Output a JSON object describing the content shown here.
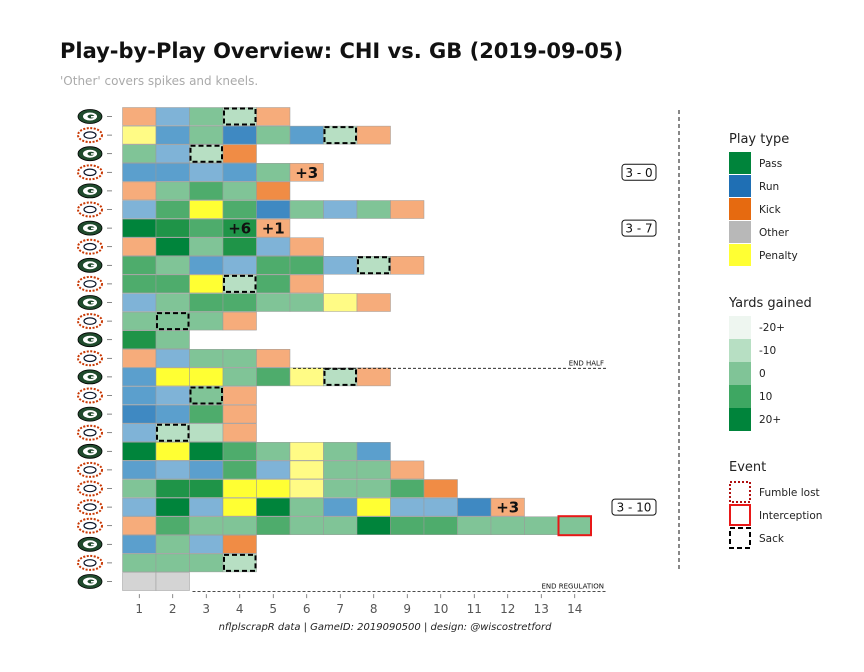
{
  "chart_data": {
    "type": "heatmap",
    "title": "Play-by-Play Overview: CHI vs. GB (2019-09-05)",
    "subtitle": "'Other' covers spikes and kneels.",
    "caption": "nflplscrapR data | GameID: 2019090500 | design: @wiscostretford",
    "x_ticks": [
      "1",
      "2",
      "3",
      "4",
      "5",
      "6",
      "7",
      "8",
      "9",
      "10",
      "11",
      "12",
      "13",
      "14"
    ],
    "colors": {
      "kick": [
        "#f6ac7b",
        "#f08c45"
      ],
      "run": [
        "#7fb3d7",
        "#5b9fcd",
        "#3f89c2"
      ],
      "pass": [
        "#b7dfc3",
        "#80c497",
        "#4eac6c",
        "#1f9448",
        "#00843b"
      ],
      "penalty": [
        "#fffb85",
        "#ffff33"
      ],
      "other": "#d4d4d4",
      "grid_stroke": "#999999",
      "interception": "#e81818"
    },
    "drives": [
      {
        "team": "GB",
        "plays": [
          {
            "t": "kick",
            "s": 0
          },
          {
            "t": "run",
            "s": 0
          },
          {
            "t": "pass",
            "s": 1
          },
          {
            "t": "pass",
            "s": 0,
            "e": "sack"
          },
          {
            "t": "kick",
            "s": 0
          }
        ]
      },
      {
        "team": "CHI",
        "plays": [
          {
            "t": "penalty",
            "s": 0
          },
          {
            "t": "run",
            "s": 1
          },
          {
            "t": "pass",
            "s": 1
          },
          {
            "t": "run",
            "s": 2
          },
          {
            "t": "pass",
            "s": 1
          },
          {
            "t": "run",
            "s": 1
          },
          {
            "t": "pass",
            "s": 0,
            "e": "sack"
          },
          {
            "t": "kick",
            "s": 0
          }
        ]
      },
      {
        "team": "GB",
        "plays": [
          {
            "t": "pass",
            "s": 1
          },
          {
            "t": "run",
            "s": 0
          },
          {
            "t": "pass",
            "s": 0,
            "e": "sack"
          },
          {
            "t": "kick",
            "s": 1
          }
        ]
      },
      {
        "team": "CHI",
        "plays": [
          {
            "t": "run",
            "s": 1
          },
          {
            "t": "run",
            "s": 1
          },
          {
            "t": "run",
            "s": 0
          },
          {
            "t": "run",
            "s": 1
          },
          {
            "t": "pass",
            "s": 1
          },
          {
            "t": "kick",
            "s": 0,
            "pts": "+3"
          }
        ],
        "score": "3 - 0"
      },
      {
        "team": "GB",
        "plays": [
          {
            "t": "kick",
            "s": 0
          },
          {
            "t": "pass",
            "s": 1
          },
          {
            "t": "pass",
            "s": 2
          },
          {
            "t": "pass",
            "s": 1
          },
          {
            "t": "kick",
            "s": 1
          }
        ]
      },
      {
        "team": "CHI",
        "plays": [
          {
            "t": "run",
            "s": 0
          },
          {
            "t": "pass",
            "s": 2
          },
          {
            "t": "penalty",
            "s": 1
          },
          {
            "t": "pass",
            "s": 2
          },
          {
            "t": "run",
            "s": 2
          },
          {
            "t": "pass",
            "s": 1
          },
          {
            "t": "run",
            "s": 0
          },
          {
            "t": "pass",
            "s": 1
          },
          {
            "t": "kick",
            "s": 0
          }
        ]
      },
      {
        "team": "GB",
        "plays": [
          {
            "t": "pass",
            "s": 4
          },
          {
            "t": "pass",
            "s": 3
          },
          {
            "t": "pass",
            "s": 2
          },
          {
            "t": "pass",
            "s": 3,
            "pts": "+6"
          },
          {
            "t": "kick",
            "s": 0,
            "pts": "+1"
          }
        ],
        "score": "3 - 7"
      },
      {
        "team": "CHI",
        "plays": [
          {
            "t": "kick",
            "s": 0
          },
          {
            "t": "pass",
            "s": 4
          },
          {
            "t": "pass",
            "s": 1
          },
          {
            "t": "pass",
            "s": 3
          },
          {
            "t": "run",
            "s": 0
          },
          {
            "t": "kick",
            "s": 0
          }
        ]
      },
      {
        "team": "GB",
        "plays": [
          {
            "t": "pass",
            "s": 2
          },
          {
            "t": "pass",
            "s": 1
          },
          {
            "t": "run",
            "s": 1
          },
          {
            "t": "run",
            "s": 0
          },
          {
            "t": "pass",
            "s": 2
          },
          {
            "t": "pass",
            "s": 2
          },
          {
            "t": "run",
            "s": 0
          },
          {
            "t": "pass",
            "s": 0,
            "e": "sack"
          },
          {
            "t": "kick",
            "s": 0
          }
        ]
      },
      {
        "team": "CHI",
        "plays": [
          {
            "t": "pass",
            "s": 2
          },
          {
            "t": "pass",
            "s": 2
          },
          {
            "t": "penalty",
            "s": 1
          },
          {
            "t": "pass",
            "s": 0,
            "e": "sack"
          },
          {
            "t": "pass",
            "s": 2
          },
          {
            "t": "kick",
            "s": 0
          }
        ]
      },
      {
        "team": "GB",
        "plays": [
          {
            "t": "run",
            "s": 0
          },
          {
            "t": "pass",
            "s": 1
          },
          {
            "t": "pass",
            "s": 2
          },
          {
            "t": "pass",
            "s": 2
          },
          {
            "t": "pass",
            "s": 1
          },
          {
            "t": "pass",
            "s": 1
          },
          {
            "t": "penalty",
            "s": 0
          },
          {
            "t": "kick",
            "s": 0
          }
        ]
      },
      {
        "team": "CHI",
        "plays": [
          {
            "t": "pass",
            "s": 1
          },
          {
            "t": "pass",
            "s": 1,
            "e": "sack"
          },
          {
            "t": "pass",
            "s": 1
          },
          {
            "t": "kick",
            "s": 0
          }
        ]
      },
      {
        "team": "GB",
        "plays": [
          {
            "t": "pass",
            "s": 3
          },
          {
            "t": "pass",
            "s": 1
          }
        ]
      },
      {
        "team": "CHI",
        "plays": [
          {
            "t": "kick",
            "s": 0
          },
          {
            "t": "run",
            "s": 0
          },
          {
            "t": "pass",
            "s": 1
          },
          {
            "t": "pass",
            "s": 1
          },
          {
            "t": "kick",
            "s": 0
          }
        ],
        "boundary": "END HALF"
      },
      {
        "team": "GB",
        "plays": [
          {
            "t": "run",
            "s": 1
          },
          {
            "t": "penalty",
            "s": 1
          },
          {
            "t": "penalty",
            "s": 1
          },
          {
            "t": "pass",
            "s": 1
          },
          {
            "t": "pass",
            "s": 2
          },
          {
            "t": "penalty",
            "s": 0
          },
          {
            "t": "pass",
            "s": 0,
            "e": "sack"
          },
          {
            "t": "kick",
            "s": 0
          }
        ]
      },
      {
        "team": "CHI",
        "plays": [
          {
            "t": "run",
            "s": 1
          },
          {
            "t": "run",
            "s": 0
          },
          {
            "t": "pass",
            "s": 1,
            "e": "sack"
          },
          {
            "t": "kick",
            "s": 0
          }
        ]
      },
      {
        "team": "GB",
        "plays": [
          {
            "t": "run",
            "s": 2
          },
          {
            "t": "run",
            "s": 1
          },
          {
            "t": "pass",
            "s": 2
          },
          {
            "t": "kick",
            "s": 0
          }
        ]
      },
      {
        "team": "CHI",
        "plays": [
          {
            "t": "run",
            "s": 0
          },
          {
            "t": "pass",
            "s": 0,
            "e": "sack"
          },
          {
            "t": "pass",
            "s": 0
          },
          {
            "t": "kick",
            "s": 0
          }
        ]
      },
      {
        "team": "GB",
        "plays": [
          {
            "t": "pass",
            "s": 4
          },
          {
            "t": "penalty",
            "s": 1
          },
          {
            "t": "pass",
            "s": 4
          },
          {
            "t": "pass",
            "s": 2
          },
          {
            "t": "pass",
            "s": 1
          },
          {
            "t": "penalty",
            "s": 0
          },
          {
            "t": "pass",
            "s": 1
          },
          {
            "t": "run",
            "s": 1
          }
        ]
      },
      {
        "team": "CHI",
        "plays": [
          {
            "t": "run",
            "s": 1
          },
          {
            "t": "run",
            "s": 0
          },
          {
            "t": "run",
            "s": 1
          },
          {
            "t": "pass",
            "s": 2
          },
          {
            "t": "run",
            "s": 0
          },
          {
            "t": "penalty",
            "s": 0
          },
          {
            "t": "pass",
            "s": 1
          },
          {
            "t": "pass",
            "s": 1
          },
          {
            "t": "kick",
            "s": 0
          }
        ]
      },
      {
        "team": "CHI",
        "plays": [
          {
            "t": "pass",
            "s": 1
          },
          {
            "t": "pass",
            "s": 3
          },
          {
            "t": "pass",
            "s": 3
          },
          {
            "t": "penalty",
            "s": 1
          },
          {
            "t": "penalty",
            "s": 1
          },
          {
            "t": "penalty",
            "s": 0
          },
          {
            "t": "pass",
            "s": 1
          },
          {
            "t": "pass",
            "s": 1
          },
          {
            "t": "pass",
            "s": 2
          },
          {
            "t": "kick",
            "s": 1
          }
        ]
      },
      {
        "team": "CHI",
        "plays": [
          {
            "t": "run",
            "s": 0
          },
          {
            "t": "pass",
            "s": 4
          },
          {
            "t": "run",
            "s": 0
          },
          {
            "t": "penalty",
            "s": 1
          },
          {
            "t": "pass",
            "s": 4
          },
          {
            "t": "pass",
            "s": 1
          },
          {
            "t": "run",
            "s": 1
          },
          {
            "t": "penalty",
            "s": 1
          },
          {
            "t": "run",
            "s": 0
          },
          {
            "t": "run",
            "s": 0
          },
          {
            "t": "run",
            "s": 2
          },
          {
            "t": "kick",
            "s": 0,
            "pts": "+3"
          }
        ],
        "score": "3 - 10"
      },
      {
        "team": "CHI",
        "plays": [
          {
            "t": "kick",
            "s": 0
          },
          {
            "t": "pass",
            "s": 2
          },
          {
            "t": "pass",
            "s": 1
          },
          {
            "t": "pass",
            "s": 1
          },
          {
            "t": "pass",
            "s": 2
          },
          {
            "t": "pass",
            "s": 1
          },
          {
            "t": "pass",
            "s": 1
          },
          {
            "t": "pass",
            "s": 4
          },
          {
            "t": "pass",
            "s": 2
          },
          {
            "t": "pass",
            "s": 2
          },
          {
            "t": "pass",
            "s": 1
          },
          {
            "t": "pass",
            "s": 1
          },
          {
            "t": "pass",
            "s": 1
          },
          {
            "t": "pass",
            "s": 1,
            "e": "interception"
          }
        ]
      },
      {
        "team": "GB",
        "plays": [
          {
            "t": "run",
            "s": 1
          },
          {
            "t": "pass",
            "s": 1
          },
          {
            "t": "run",
            "s": 0
          },
          {
            "t": "kick",
            "s": 1
          }
        ]
      },
      {
        "team": "CHI",
        "plays": [
          {
            "t": "pass",
            "s": 1
          },
          {
            "t": "pass",
            "s": 1
          },
          {
            "t": "pass",
            "s": 1
          },
          {
            "t": "pass",
            "s": 0,
            "e": "sack"
          }
        ]
      },
      {
        "team": "GB",
        "plays": [
          {
            "t": "other",
            "s": 0
          },
          {
            "t": "other",
            "s": 0
          }
        ],
        "boundary": "END REGULATION"
      }
    ],
    "legend_play_type": {
      "title": "Play type",
      "items": [
        {
          "label": "Pass",
          "color": "#00843b"
        },
        {
          "label": "Run",
          "color": "#1f6fb4"
        },
        {
          "label": "Kick",
          "color": "#e66a10"
        },
        {
          "label": "Other",
          "color": "#b8b8b8"
        },
        {
          "label": "Penalty",
          "color": "#ffff33"
        }
      ]
    },
    "legend_yards": {
      "title": "Yards gained",
      "items": [
        {
          "label": "-20+",
          "color": "#eef6f0"
        },
        {
          "label": "-10",
          "color": "#b7dfc3"
        },
        {
          "label": "0",
          "color": "#80c497"
        },
        {
          "label": "10",
          "color": "#3ea762"
        },
        {
          "label": "20+",
          "color": "#00843b"
        }
      ]
    },
    "legend_event": {
      "title": "Event",
      "items": [
        {
          "label": "Fumble lost",
          "kind": "fumble"
        },
        {
          "label": "Interception",
          "kind": "interception"
        },
        {
          "label": "Sack",
          "kind": "sack"
        }
      ]
    }
  }
}
